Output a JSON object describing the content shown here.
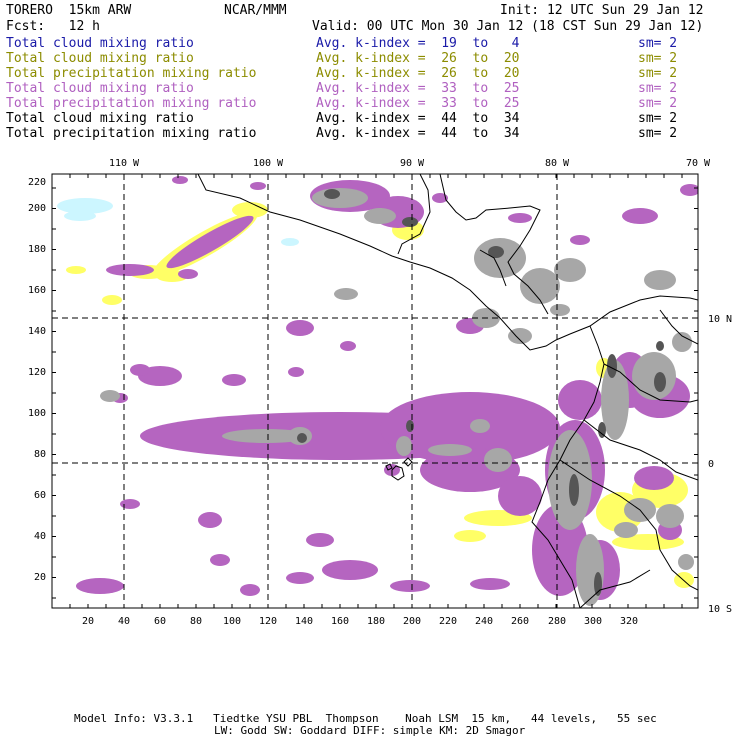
{
  "header": {
    "model": "TORERO  15km ARW",
    "center": "NCAR/MMM",
    "init": "Init: 12 UTC Sun 29 Jan 12",
    "fcst": "Fcst:   12 h",
    "valid": "Valid: 00 UTC Mon 30 Jan 12 (18 CST Sun 29 Jan 12)"
  },
  "colors": {
    "blue": "#1a1aa8",
    "olive": "#8c8c00",
    "purple": "#b060c0",
    "black": "#000000",
    "cloud_fill": "#a7a7a7",
    "dark_cloud": "#555555",
    "precip_purple": "#b565c0",
    "yellow": "#ffff66",
    "cyan": "#ccf6ff"
  },
  "legend": [
    {
      "field": "Total cloud mixing ratio",
      "kindex": "Avg. k-index =  19  to   4",
      "sm": "sm= 2",
      "color": "#1a1aa8"
    },
    {
      "field": "Total cloud mixing ratio",
      "kindex": "Avg. k-index =  26  to  20",
      "sm": "sm= 2",
      "color": "#8c8c00"
    },
    {
      "field": "Total precipitation mixing ratio",
      "kindex": "Avg. k-index =  26  to  20",
      "sm": "sm= 2",
      "color": "#8c8c00"
    },
    {
      "field": "Total cloud mixing ratio",
      "kindex": "Avg. k-index =  33  to  25",
      "sm": "sm= 2",
      "color": "#b060c0"
    },
    {
      "field": "Total precipitation mixing ratio",
      "kindex": "Avg. k-index =  33  to  25",
      "sm": "sm= 2",
      "color": "#b060c0"
    },
    {
      "field": "Total cloud mixing ratio",
      "kindex": "Avg. k-index =  44  to  34",
      "sm": "sm= 2",
      "color": "#000000"
    },
    {
      "field": "Total precipitation mixing ratio",
      "kindex": "Avg. k-index =  44  to  34",
      "sm": "sm= 2",
      "color": "#000000"
    }
  ],
  "map": {
    "lon_labels": [
      "110 W",
      "100 W",
      "90 W",
      "80 W",
      "70 W"
    ],
    "lat_labels": [
      "10 N",
      "0",
      "10 S"
    ],
    "x_ticks": [
      "20",
      "40",
      "60",
      "80",
      "100",
      "120",
      "140",
      "160",
      "180",
      "200",
      "220",
      "240",
      "260",
      "280",
      "300",
      "320"
    ],
    "y_ticks": [
      "20",
      "40",
      "60",
      "80",
      "100",
      "120",
      "140",
      "160",
      "180",
      "200",
      "220"
    ]
  },
  "footer": {
    "line1": "Model Info: V3.3.1   Tiedtke YSU PBL  Thompson    Noah LSM  15 km,   44 levels,   55 sec",
    "line2": "LW: Godd SW: Goddard DIFF: simple KM: 2D Smagor"
  }
}
